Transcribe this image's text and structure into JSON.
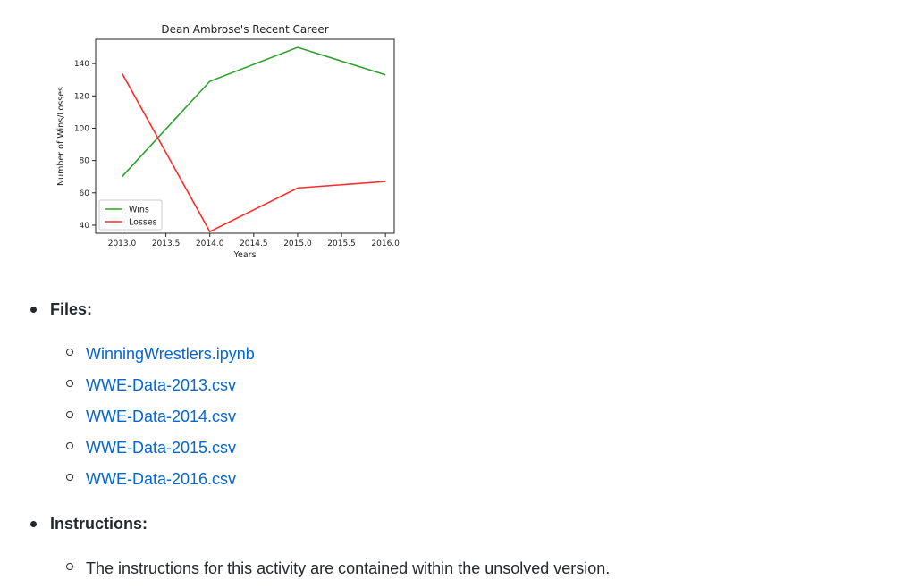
{
  "chart_data": {
    "type": "line",
    "title": "Dean Ambrose's Recent Career",
    "xlabel": "Years",
    "ylabel": "Number of Wins/Losses",
    "x": [
      2013,
      2014,
      2015,
      2016
    ],
    "xticks": [
      "2013.0",
      "2013.5",
      "2014.0",
      "2014.5",
      "2015.0",
      "2015.5",
      "2016.0"
    ],
    "yticks": [
      "40",
      "60",
      "80",
      "100",
      "120",
      "140"
    ],
    "xlim": [
      2012.7,
      2016.1
    ],
    "ylim": [
      35,
      155
    ],
    "legend_position": "lower-left",
    "series": [
      {
        "name": "Wins",
        "color": "#2ca02c",
        "values": [
          70,
          129,
          150,
          133
        ]
      },
      {
        "name": "Losses",
        "color": "#ff2b2b",
        "values": [
          134,
          36,
          63,
          67
        ]
      }
    ]
  },
  "sections": {
    "files": {
      "label": "Files:",
      "items": [
        "WinningWrestlers.ipynb",
        "WWE-Data-2013.csv",
        "WWE-Data-2014.csv",
        "WWE-Data-2015.csv",
        "WWE-Data-2016.csv"
      ]
    },
    "instructions": {
      "label": "Instructions:",
      "items": [
        "The instructions for this activity are contained within the unsolved version."
      ]
    }
  }
}
